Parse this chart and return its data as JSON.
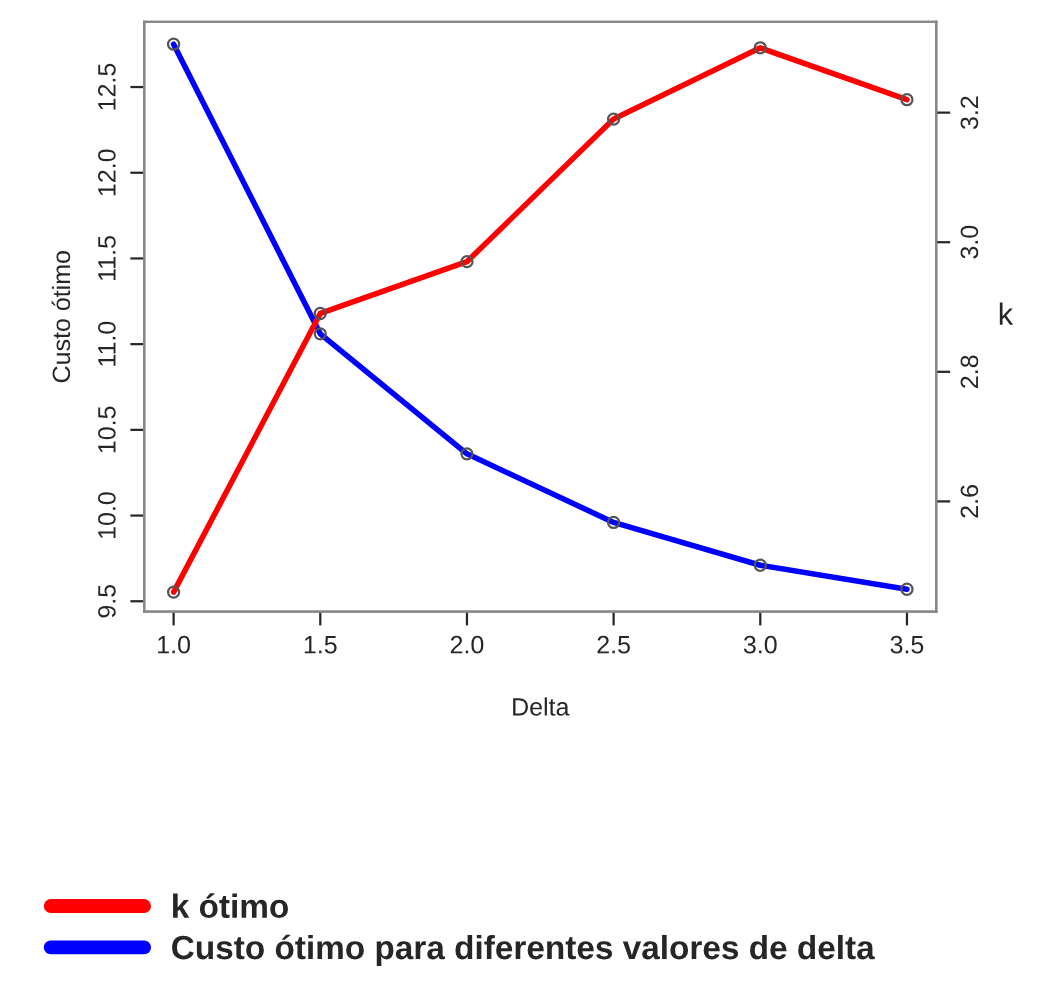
{
  "chart_data": {
    "type": "line",
    "xlabel": "Delta",
    "ylabel": "Custo ótimo",
    "y2label": "k",
    "x": [
      1.0,
      1.5,
      2.0,
      2.5,
      3.0,
      3.5
    ],
    "series": [
      {
        "name": "k ótimo",
        "color": "#ff0000",
        "axis": "y2",
        "values": [
          2.46,
          2.89,
          2.97,
          3.19,
          3.3,
          3.22
        ]
      },
      {
        "name": "Custo ótimo para diferentes valores de delta",
        "color": "#0000ff",
        "values": [
          12.75,
          11.06,
          10.36,
          9.96,
          9.71,
          9.57
        ]
      }
    ],
    "xlim": [
      0.9,
      3.6
    ],
    "xticks": [
      {
        "value": 1.0,
        "label": "1.0"
      },
      {
        "value": 1.5,
        "label": "1.5"
      },
      {
        "value": 2.0,
        "label": "2.0"
      },
      {
        "value": 2.5,
        "label": "2.5"
      },
      {
        "value": 3.0,
        "label": "3.0"
      },
      {
        "value": 3.5,
        "label": "3.5"
      }
    ],
    "ylim": [
      9.44,
      12.88
    ],
    "yticks": [
      {
        "value": 9.5,
        "label": "9.5"
      },
      {
        "value": 10.0,
        "label": "10.0"
      },
      {
        "value": 10.5,
        "label": "10.5"
      },
      {
        "value": 11.0,
        "label": "11.0"
      },
      {
        "value": 11.5,
        "label": "11.5"
      },
      {
        "value": 12.0,
        "label": "12.0"
      },
      {
        "value": 12.5,
        "label": "12.5"
      }
    ],
    "y2lim": [
      2.43,
      3.34
    ],
    "y2ticks": [
      {
        "value": 2.6,
        "label": "2.6"
      },
      {
        "value": 2.8,
        "label": "2.8"
      },
      {
        "value": 3.0,
        "label": "3.0"
      },
      {
        "value": 3.2,
        "label": "3.2"
      }
    ],
    "marker": "circle",
    "grid": false,
    "legend": "bottom left"
  }
}
